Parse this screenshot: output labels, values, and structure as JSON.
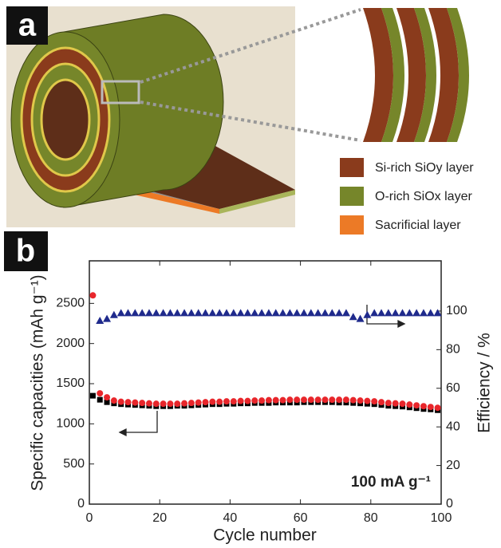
{
  "panel_a": {
    "label": "a",
    "legend": [
      {
        "name": "Si-rich SiOy layer",
        "color": "#8a3b1c"
      },
      {
        "name": "O-rich SiOx layer",
        "color": "#76862a"
      },
      {
        "name": "Sacrificial layer",
        "color": "#ec7a26"
      }
    ]
  },
  "panel_b": {
    "label": "b"
  },
  "chart_data": {
    "type": "scatter",
    "xlabel": "Cycle number",
    "ylabel": "Specific capacities (mAh g⁻¹)",
    "y2label": "Efficiency / %",
    "annotation": "100 mA g⁻¹",
    "x": [
      1,
      3,
      5,
      7,
      9,
      11,
      13,
      15,
      17,
      19,
      21,
      23,
      25,
      27,
      29,
      31,
      33,
      35,
      37,
      39,
      41,
      43,
      45,
      47,
      49,
      51,
      53,
      55,
      57,
      59,
      61,
      63,
      65,
      67,
      69,
      71,
      73,
      75,
      77,
      79,
      81,
      83,
      85,
      87,
      89,
      91,
      93,
      95,
      97,
      99
    ],
    "series": [
      {
        "color": "#000000",
        "marker": "square",
        "values": [
          1350,
          1300,
          1270,
          1255,
          1245,
          1240,
          1235,
          1230,
          1225,
          1220,
          1220,
          1220,
          1225,
          1225,
          1230,
          1235,
          1240,
          1245,
          1245,
          1250,
          1250,
          1255,
          1255,
          1260,
          1260,
          1260,
          1265,
          1265,
          1265,
          1265,
          1270,
          1270,
          1270,
          1270,
          1270,
          1265,
          1265,
          1260,
          1255,
          1250,
          1245,
          1235,
          1225,
          1220,
          1215,
          1205,
          1195,
          1185,
          1180,
          1170
        ]
      },
      {
        "color": "#e8262b",
        "marker": "circle",
        "values": [
          2600,
          1380,
          1330,
          1290,
          1275,
          1270,
          1265,
          1260,
          1255,
          1250,
          1250,
          1250,
          1250,
          1255,
          1260,
          1265,
          1270,
          1275,
          1275,
          1280,
          1280,
          1285,
          1285,
          1290,
          1290,
          1295,
          1295,
          1295,
          1300,
          1300,
          1300,
          1300,
          1300,
          1300,
          1300,
          1300,
          1300,
          1295,
          1290,
          1285,
          1280,
          1270,
          1260,
          1255,
          1250,
          1240,
          1230,
          1220,
          1210,
          1200
        ]
      },
      {
        "color": "#1f2a8c",
        "marker": "triangle",
        "axis": "y2",
        "values": [
          null,
          95,
          96,
          98,
          99,
          99,
          99,
          99,
          99,
          99,
          99,
          99,
          99,
          99,
          99,
          99,
          99,
          99,
          99,
          99,
          99,
          99,
          99,
          99,
          99,
          99,
          99,
          99,
          99,
          99,
          99,
          99,
          99,
          99,
          99,
          99,
          99,
          97,
          96,
          98,
          99,
          99,
          99,
          99,
          99,
          99,
          99,
          99,
          99,
          99
        ]
      }
    ],
    "xlim": [
      0,
      100
    ],
    "xticks": [
      0,
      20,
      40,
      60,
      80,
      100
    ],
    "ylim": [
      0,
      3030
    ],
    "yticks": [
      0,
      500,
      1000,
      1500,
      2000,
      2500
    ],
    "y2lim": [
      0,
      126
    ],
    "y2ticks": [
      0,
      20,
      40,
      60,
      80,
      100
    ]
  }
}
